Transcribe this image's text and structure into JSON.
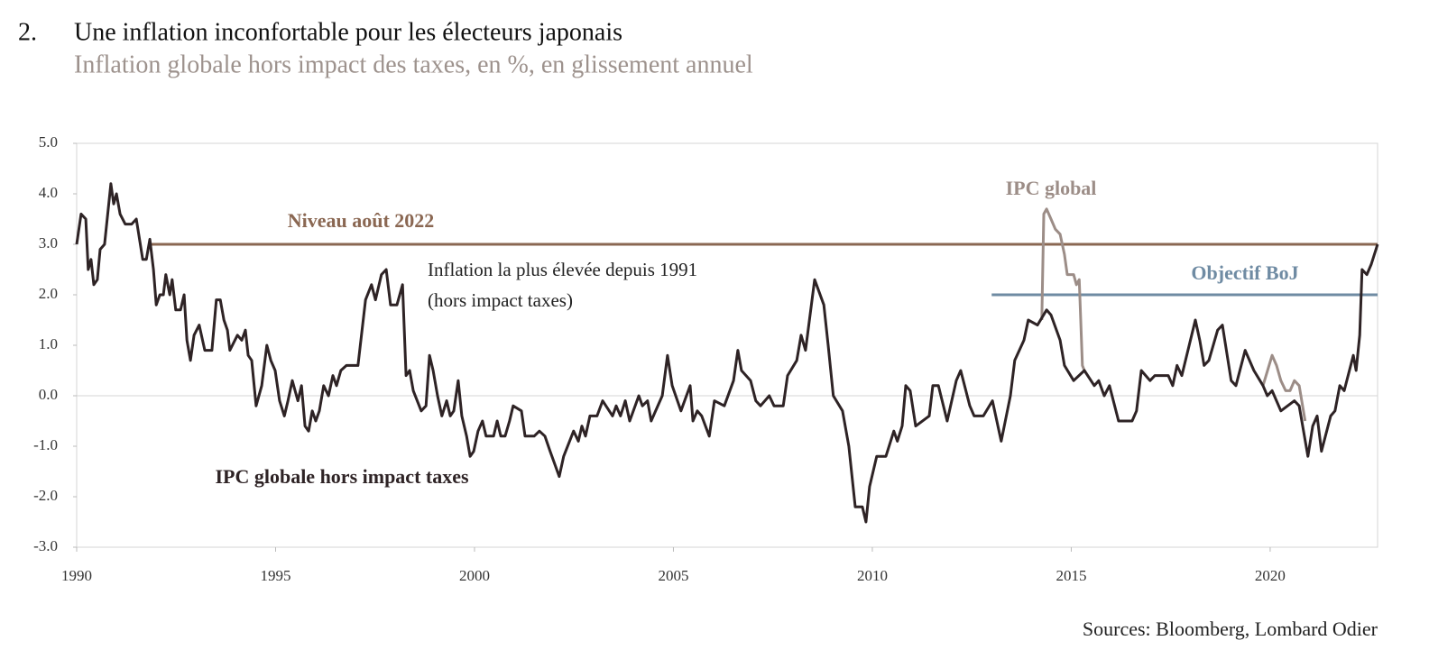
{
  "chart_data": {
    "type": "line",
    "number": "2.",
    "title": "Une inflation inconfortable pour les électeurs japonais",
    "subtitle": "Inflation globale hors impact des taxes, en %, en glissement annuel",
    "source": "Sources: Bloomberg, Lombard Odier",
    "annotation": [
      "Inflation la plus élevée depuis 1991",
      "(hors impact taxes)"
    ],
    "xlim": [
      1990,
      2022.7
    ],
    "xticks": [
      1990,
      1995,
      2000,
      2005,
      2010,
      2015,
      2020
    ],
    "ylim": [
      -3,
      5
    ],
    "yticks": [
      {
        "value": -3,
        "label": "-3.0"
      },
      {
        "value": -2,
        "label": "-2.0"
      },
      {
        "value": -1,
        "label": "-1.0"
      },
      {
        "value": 0,
        "label": "0.0"
      },
      {
        "value": 1,
        "label": "1.0"
      },
      {
        "value": 2,
        "label": "2.0"
      },
      {
        "value": 3,
        "label": "3.0"
      },
      {
        "value": 4,
        "label": "4.0"
      },
      {
        "value": 5,
        "label": "5.0"
      }
    ],
    "zero_line": true,
    "reference_lines": [
      {
        "label": "Niveau août 2022",
        "value": 3,
        "x_start": 1991.8,
        "color": "#8a6752"
      },
      {
        "label": "Objectif BoJ",
        "value": 2,
        "x_start": 2013,
        "color": "#6f8ba3"
      }
    ],
    "series": [
      {
        "name": "IPC global",
        "color": "#9c8d87",
        "x": [
          2014.26,
          2014.31,
          2014.38,
          2014.49,
          2014.6,
          2014.72,
          2014.83,
          2014.9,
          2015.06,
          2015.13,
          2015.2,
          2015.28,
          2015.33,
          null,
          2019.82,
          2020.05,
          2020.16,
          2020.27,
          2020.39,
          2020.5,
          2020.61,
          2020.73,
          2020.88
        ],
        "values": [
          1.5,
          3.6,
          3.7,
          3.5,
          3.3,
          3.2,
          2.8,
          2.4,
          2.4,
          2.2,
          2.3,
          0.6,
          0.5,
          null,
          0.2,
          0.8,
          0.6,
          0.3,
          0.1,
          0.1,
          0.3,
          0.2,
          -0.5
        ]
      },
      {
        "name": "IPC globale hors impact taxes",
        "color": "#2e2325",
        "x": [
          1990.0,
          1990.11,
          1990.23,
          1990.29,
          1990.36,
          1990.43,
          1990.52,
          1990.59,
          1990.7,
          1990.86,
          1990.93,
          1991.0,
          1991.09,
          1991.22,
          1991.38,
          1991.5,
          1991.66,
          1991.75,
          1991.84,
          1991.93,
          1992.0,
          1992.09,
          1992.18,
          1992.24,
          1992.34,
          1992.4,
          1992.49,
          1992.61,
          1992.7,
          1992.77,
          1992.86,
          1992.95,
          1993.08,
          1993.22,
          1993.4,
          1993.51,
          1993.61,
          1993.7,
          1993.79,
          1993.85,
          1994.04,
          1994.15,
          1994.24,
          1994.31,
          1994.4,
          1994.51,
          1994.65,
          1994.78,
          1994.88,
          1994.99,
          1995.1,
          1995.22,
          1995.31,
          1995.42,
          1995.56,
          1995.65,
          1995.74,
          1995.83,
          1995.92,
          1996.01,
          1996.1,
          1996.21,
          1996.33,
          1996.44,
          1996.53,
          1996.64,
          1996.78,
          1997.07,
          1997.26,
          1997.41,
          1997.51,
          1997.66,
          1997.78,
          1997.89,
          1998.05,
          1998.19,
          1998.28,
          1998.37,
          1998.46,
          1998.66,
          1998.78,
          1998.87,
          1998.96,
          1999.07,
          1999.18,
          1999.3,
          1999.39,
          1999.48,
          1999.59,
          1999.68,
          1999.8,
          1999.89,
          1999.98,
          2000.09,
          2000.2,
          2000.29,
          2000.48,
          2000.57,
          2000.66,
          2000.77,
          2000.88,
          2000.97,
          2001.18,
          2001.27,
          2001.5,
          2001.63,
          2001.77,
          2001.9,
          2002.13,
          2002.24,
          2002.49,
          2002.61,
          2002.7,
          2002.79,
          2002.9,
          2003.08,
          2003.22,
          2003.47,
          2003.56,
          2003.67,
          2003.79,
          2003.9,
          2004.13,
          2004.22,
          2004.35,
          2004.44,
          2004.72,
          2004.85,
          2004.97,
          2005.19,
          2005.42,
          2005.49,
          2005.6,
          2005.71,
          2005.9,
          2006.03,
          2006.28,
          2006.51,
          2006.62,
          2006.71,
          2006.94,
          2007.07,
          2007.19,
          2007.41,
          2007.53,
          2007.76,
          2007.87,
          2008.1,
          2008.21,
          2008.32,
          2008.55,
          2008.78,
          2008.89,
          2009.02,
          2009.25,
          2009.41,
          2009.57,
          2009.75,
          2009.84,
          2009.93,
          2010.11,
          2010.34,
          2010.54,
          2010.63,
          2010.75,
          2010.84,
          2010.95,
          2011.09,
          2011.43,
          2011.52,
          2011.66,
          2011.88,
          2012.11,
          2012.22,
          2012.45,
          2012.56,
          2012.79,
          2013.02,
          2013.24,
          2013.47,
          2013.58,
          2013.81,
          2013.92,
          2014.15,
          2014.38,
          2014.49,
          2014.72,
          2014.83,
          2015.06,
          2015.33,
          2015.58,
          2015.69,
          2015.83,
          2015.96,
          2016.19,
          2016.53,
          2016.64,
          2016.76,
          2016.98,
          2017.1,
          2017.44,
          2017.55,
          2017.66,
          2017.78,
          2018.12,
          2018.23,
          2018.34,
          2018.46,
          2018.68,
          2018.8,
          2019.02,
          2019.14,
          2019.37,
          2019.59,
          2019.82,
          2019.93,
          2020.05,
          2020.27,
          2020.61,
          2020.73,
          2020.95,
          2021.07,
          2021.18,
          2021.29,
          2021.52,
          2021.63,
          2021.75,
          2021.86,
          2022.09,
          2022.16,
          2022.25,
          2022.31,
          2022.43,
          2022.54,
          2022.7
        ],
        "values": [
          3.0,
          3.6,
          3.5,
          2.5,
          2.7,
          2.2,
          2.3,
          2.9,
          3.0,
          4.2,
          3.8,
          4.0,
          3.6,
          3.4,
          3.4,
          3.5,
          2.7,
          2.7,
          3.1,
          2.5,
          1.8,
          2.0,
          2.0,
          2.4,
          2.0,
          2.3,
          1.7,
          1.7,
          2.0,
          1.1,
          0.7,
          1.2,
          1.4,
          0.9,
          0.9,
          1.9,
          1.9,
          1.5,
          1.3,
          0.9,
          1.2,
          1.1,
          1.3,
          0.8,
          0.7,
          -0.2,
          0.2,
          1.0,
          0.7,
          0.5,
          -0.1,
          -0.4,
          -0.1,
          0.3,
          -0.1,
          0.2,
          -0.6,
          -0.7,
          -0.3,
          -0.5,
          -0.3,
          0.2,
          0.0,
          0.4,
          0.2,
          0.5,
          0.6,
          0.6,
          1.9,
          2.2,
          1.9,
          2.4,
          2.5,
          1.8,
          1.8,
          2.2,
          0.4,
          0.5,
          0.1,
          -0.3,
          -0.2,
          0.8,
          0.5,
          0.0,
          -0.4,
          -0.1,
          -0.4,
          -0.3,
          0.3,
          -0.4,
          -0.8,
          -1.2,
          -1.1,
          -0.7,
          -0.5,
          -0.8,
          -0.8,
          -0.5,
          -0.8,
          -0.8,
          -0.5,
          -0.2,
          -0.3,
          -0.8,
          -0.8,
          -0.7,
          -0.8,
          -1.1,
          -1.6,
          -1.2,
          -0.7,
          -0.9,
          -0.6,
          -0.8,
          -0.4,
          -0.4,
          -0.1,
          -0.4,
          -0.2,
          -0.4,
          -0.1,
          -0.5,
          0.0,
          -0.2,
          -0.1,
          -0.5,
          0.0,
          0.8,
          0.2,
          -0.3,
          0.2,
          -0.5,
          -0.3,
          -0.4,
          -0.8,
          -0.1,
          -0.2,
          0.3,
          0.9,
          0.5,
          0.3,
          -0.1,
          -0.2,
          0.0,
          -0.2,
          -0.2,
          0.4,
          0.7,
          1.2,
          0.9,
          2.3,
          1.8,
          1.0,
          0.0,
          -0.3,
          -1.0,
          -2.2,
          -2.2,
          -2.5,
          -1.8,
          -1.2,
          -1.2,
          -0.7,
          -0.9,
          -0.6,
          0.2,
          0.1,
          -0.6,
          -0.4,
          0.2,
          0.2,
          -0.5,
          0.3,
          0.5,
          -0.2,
          -0.4,
          -0.4,
          -0.1,
          -0.9,
          0.0,
          0.7,
          1.1,
          1.5,
          1.4,
          1.7,
          1.6,
          1.1,
          0.6,
          0.3,
          0.5,
          0.2,
          0.3,
          0.0,
          0.2,
          -0.5,
          -0.5,
          -0.3,
          0.5,
          0.3,
          0.4,
          0.4,
          0.2,
          0.6,
          0.4,
          1.5,
          1.1,
          0.6,
          0.7,
          1.3,
          1.4,
          0.3,
          0.2,
          0.9,
          0.5,
          0.2,
          0.0,
          0.1,
          -0.3,
          -0.1,
          -0.2,
          -1.2,
          -0.6,
          -0.4,
          -1.1,
          -0.4,
          -0.3,
          0.2,
          0.1,
          0.8,
          0.5,
          1.2,
          2.5,
          2.4,
          2.6,
          3.0
        ]
      }
    ]
  }
}
